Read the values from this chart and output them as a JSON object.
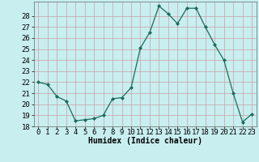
{
  "x": [
    0,
    1,
    2,
    3,
    4,
    5,
    6,
    7,
    8,
    9,
    10,
    11,
    12,
    13,
    14,
    15,
    16,
    17,
    18,
    19,
    20,
    21,
    22,
    23
  ],
  "y": [
    22,
    21.8,
    20.7,
    20.3,
    18.5,
    18.6,
    18.7,
    19.0,
    20.5,
    20.6,
    21.5,
    25.1,
    26.5,
    28.9,
    28.2,
    27.3,
    28.7,
    28.7,
    27.0,
    25.4,
    24.0,
    21.0,
    18.4,
    19.1
  ],
  "xlabel": "Humidex (Indice chaleur)",
  "ylim": [
    18,
    29
  ],
  "yticks": [
    18,
    19,
    20,
    21,
    22,
    23,
    24,
    25,
    26,
    27,
    28
  ],
  "xticks": [
    0,
    1,
    2,
    3,
    4,
    5,
    6,
    7,
    8,
    9,
    10,
    11,
    12,
    13,
    14,
    15,
    16,
    17,
    18,
    19,
    20,
    21,
    22,
    23
  ],
  "line_color": "#1a6b5a",
  "marker": "D",
  "marker_size": 2.0,
  "bg_color": "#c8eef0",
  "grid_color": "#c8a0a8",
  "axis_fontsize": 7,
  "tick_fontsize": 6.5,
  "xlim_left": -0.5,
  "xlim_right": 23.5
}
